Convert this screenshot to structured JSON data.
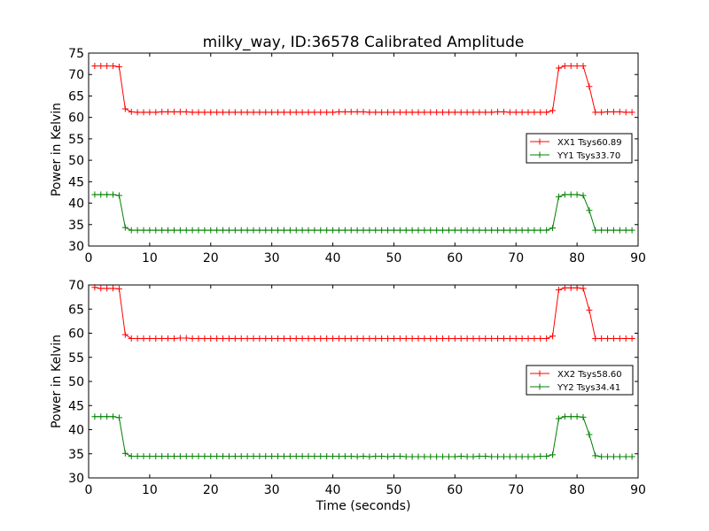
{
  "chart_data": [
    {
      "type": "line",
      "title": "milky_way, ID:36578 Calibrated Amplitude",
      "xlabel": "",
      "ylabel": "Power in Kelvin",
      "xlim": [
        0,
        90
      ],
      "ylim": [
        30,
        75
      ],
      "xticks": [
        0,
        10,
        20,
        30,
        40,
        50,
        60,
        70,
        80,
        90
      ],
      "yticks": [
        30,
        35,
        40,
        45,
        50,
        55,
        60,
        65,
        70,
        75
      ],
      "grid": false,
      "legend": "right",
      "x": [
        1,
        2,
        3,
        4,
        5,
        6,
        7,
        8,
        9,
        10,
        11,
        12,
        13,
        14,
        15,
        16,
        17,
        18,
        19,
        20,
        21,
        22,
        23,
        24,
        25,
        26,
        27,
        28,
        29,
        30,
        31,
        32,
        33,
        34,
        35,
        36,
        37,
        38,
        39,
        40,
        41,
        42,
        43,
        44,
        45,
        46,
        47,
        48,
        49,
        50,
        51,
        52,
        53,
        54,
        55,
        56,
        57,
        58,
        59,
        60,
        61,
        62,
        63,
        64,
        65,
        66,
        67,
        68,
        69,
        70,
        71,
        72,
        73,
        74,
        75,
        76,
        77,
        78,
        79,
        80,
        81,
        82,
        83,
        84,
        85,
        86,
        87,
        88,
        89
      ],
      "series": [
        {
          "name": "XX1 Tsys60.89",
          "color": "#ff0000",
          "values": [
            72,
            72,
            72,
            72,
            71.8,
            62,
            61.3,
            61.2,
            61.2,
            61.2,
            61.2,
            61.3,
            61.3,
            61.3,
            61.3,
            61.3,
            61.2,
            61.2,
            61.2,
            61.2,
            61.2,
            61.2,
            61.2,
            61.2,
            61.2,
            61.2,
            61.2,
            61.2,
            61.2,
            61.2,
            61.2,
            61.2,
            61.2,
            61.2,
            61.2,
            61.2,
            61.2,
            61.2,
            61.2,
            61.2,
            61.3,
            61.3,
            61.3,
            61.3,
            61.3,
            61.2,
            61.2,
            61.2,
            61.2,
            61.2,
            61.2,
            61.2,
            61.2,
            61.2,
            61.2,
            61.2,
            61.2,
            61.2,
            61.2,
            61.2,
            61.2,
            61.2,
            61.2,
            61.2,
            61.2,
            61.2,
            61.3,
            61.3,
            61.2,
            61.2,
            61.2,
            61.2,
            61.2,
            61.2,
            61.2,
            61.6,
            71.5,
            72,
            72,
            72,
            72,
            67.2,
            61.2,
            61.2,
            61.3,
            61.3,
            61.3,
            61.2,
            61.2
          ]
        },
        {
          "name": "YY1 Tsys33.70",
          "color": "#008000",
          "values": [
            42,
            42,
            42,
            42,
            41.8,
            34.3,
            33.7,
            33.7,
            33.7,
            33.7,
            33.7,
            33.7,
            33.7,
            33.7,
            33.7,
            33.7,
            33.7,
            33.7,
            33.7,
            33.7,
            33.7,
            33.7,
            33.7,
            33.7,
            33.7,
            33.7,
            33.7,
            33.7,
            33.7,
            33.7,
            33.7,
            33.7,
            33.7,
            33.7,
            33.7,
            33.7,
            33.7,
            33.7,
            33.7,
            33.7,
            33.7,
            33.7,
            33.7,
            33.7,
            33.7,
            33.7,
            33.7,
            33.7,
            33.7,
            33.7,
            33.7,
            33.7,
            33.7,
            33.7,
            33.7,
            33.7,
            33.7,
            33.7,
            33.7,
            33.7,
            33.7,
            33.7,
            33.7,
            33.7,
            33.7,
            33.7,
            33.7,
            33.7,
            33.7,
            33.7,
            33.7,
            33.7,
            33.7,
            33.7,
            33.7,
            34.2,
            41.5,
            42,
            42,
            42,
            41.8,
            38.3,
            33.7,
            33.7,
            33.7,
            33.7,
            33.7,
            33.7,
            33.7
          ]
        }
      ]
    },
    {
      "type": "line",
      "title": "",
      "xlabel": "Time (seconds)",
      "ylabel": "Power in Kelvin",
      "xlim": [
        0,
        90
      ],
      "ylim": [
        30,
        70
      ],
      "xticks": [
        0,
        10,
        20,
        30,
        40,
        50,
        60,
        70,
        80,
        90
      ],
      "yticks": [
        30,
        35,
        40,
        45,
        50,
        55,
        60,
        65,
        70
      ],
      "grid": false,
      "legend": "right",
      "x": [
        1,
        2,
        3,
        4,
        5,
        6,
        7,
        8,
        9,
        10,
        11,
        12,
        13,
        14,
        15,
        16,
        17,
        18,
        19,
        20,
        21,
        22,
        23,
        24,
        25,
        26,
        27,
        28,
        29,
        30,
        31,
        32,
        33,
        34,
        35,
        36,
        37,
        38,
        39,
        40,
        41,
        42,
        43,
        44,
        45,
        46,
        47,
        48,
        49,
        50,
        51,
        52,
        53,
        54,
        55,
        56,
        57,
        58,
        59,
        60,
        61,
        62,
        63,
        64,
        65,
        66,
        67,
        68,
        69,
        70,
        71,
        72,
        73,
        74,
        75,
        76,
        77,
        78,
        79,
        80,
        81,
        82,
        83,
        84,
        85,
        86,
        87,
        88,
        89
      ],
      "series": [
        {
          "name": "XX2 Tsys58.60",
          "color": "#ff0000",
          "values": [
            69.5,
            69.3,
            69.3,
            69.3,
            69.2,
            59.7,
            58.9,
            58.9,
            58.9,
            58.9,
            58.9,
            58.9,
            58.9,
            58.9,
            59,
            59,
            58.9,
            58.9,
            58.9,
            58.9,
            58.9,
            58.9,
            58.9,
            58.9,
            58.9,
            58.9,
            58.9,
            58.9,
            58.9,
            58.9,
            58.9,
            58.9,
            58.9,
            58.9,
            58.9,
            58.9,
            58.9,
            58.9,
            58.9,
            58.9,
            58.9,
            58.9,
            58.9,
            58.9,
            58.9,
            58.9,
            58.9,
            58.9,
            58.9,
            58.9,
            58.9,
            58.9,
            58.9,
            58.9,
            58.9,
            58.9,
            58.9,
            58.9,
            58.9,
            58.9,
            58.9,
            58.9,
            58.9,
            58.9,
            58.9,
            58.9,
            58.9,
            58.9,
            58.9,
            58.9,
            58.9,
            58.9,
            58.9,
            58.9,
            58.9,
            59.4,
            69,
            69.4,
            69.4,
            69.4,
            69.3,
            64.8,
            58.9,
            58.9,
            58.9,
            58.9,
            58.9,
            58.9,
            58.9
          ]
        },
        {
          "name": "YY2 Tsys34.41",
          "color": "#008000",
          "values": [
            42.7,
            42.7,
            42.7,
            42.7,
            42.5,
            35.1,
            34.5,
            34.5,
            34.5,
            34.5,
            34.5,
            34.5,
            34.5,
            34.5,
            34.5,
            34.5,
            34.5,
            34.5,
            34.5,
            34.5,
            34.5,
            34.5,
            34.5,
            34.5,
            34.5,
            34.5,
            34.5,
            34.5,
            34.5,
            34.5,
            34.5,
            34.5,
            34.5,
            34.5,
            34.5,
            34.5,
            34.5,
            34.5,
            34.5,
            34.5,
            34.5,
            34.5,
            34.5,
            34.4,
            34.5,
            34.4,
            34.5,
            34.5,
            34.4,
            34.5,
            34.5,
            34.4,
            34.4,
            34.4,
            34.4,
            34.4,
            34.4,
            34.4,
            34.4,
            34.4,
            34.5,
            34.4,
            34.4,
            34.5,
            34.5,
            34.4,
            34.4,
            34.4,
            34.4,
            34.4,
            34.4,
            34.4,
            34.4,
            34.5,
            34.5,
            34.8,
            42.3,
            42.7,
            42.7,
            42.7,
            42.6,
            39,
            34.6,
            34.4,
            34.4,
            34.4,
            34.4,
            34.4,
            34.4
          ]
        }
      ]
    }
  ]
}
